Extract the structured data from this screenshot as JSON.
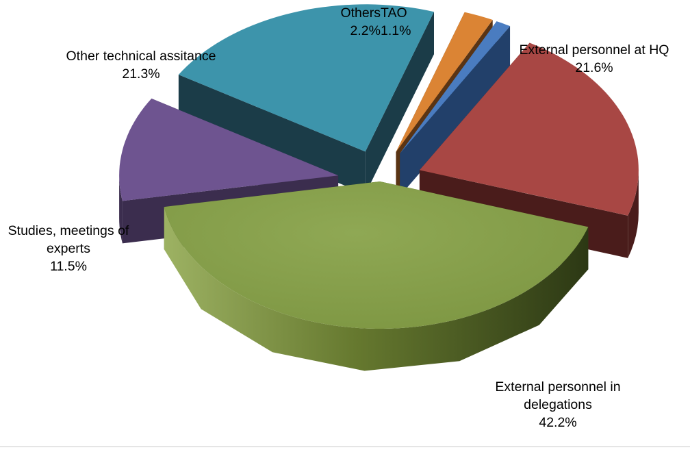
{
  "chart_data": {
    "type": "pie",
    "style": "3d-exploded",
    "title": "",
    "slices": [
      {
        "label": "External personnel in delegations",
        "label_lines": [
          "External personnel in",
          "delegations"
        ],
        "value": 42.2,
        "value_label": "42.2%",
        "color": "#86A04A",
        "side_color": "#3A4A1F"
      },
      {
        "label": "Studies, meetings of experts",
        "label_lines": [
          "Studies, meetings of",
          "experts"
        ],
        "value": 11.5,
        "value_label": "11.5%",
        "color": "#6E5490",
        "side_color": "#3B2D4E"
      },
      {
        "label": "Other technical assitance",
        "label_lines": [
          "Other technical assitance"
        ],
        "value": 21.3,
        "value_label": "21.3%",
        "color": "#3D94AB",
        "side_color": "#1B3C48"
      },
      {
        "label": "Others",
        "label_lines": [
          "Others"
        ],
        "value": 2.2,
        "value_label": "2.2%",
        "color": "#DB8434",
        "side_color": "#5A3414"
      },
      {
        "label": "TAO",
        "label_lines": [
          "TAO"
        ],
        "value": 1.1,
        "value_label": "1.1%",
        "color": "#4A7CC0",
        "side_color": "#22406A"
      },
      {
        "label": "External personnel at HQ",
        "label_lines": [
          "External personnel at HQ"
        ],
        "value": 21.6,
        "value_label": "21.6%",
        "color": "#A84744",
        "side_color": "#4A1C1B"
      }
    ],
    "legend": "none"
  }
}
